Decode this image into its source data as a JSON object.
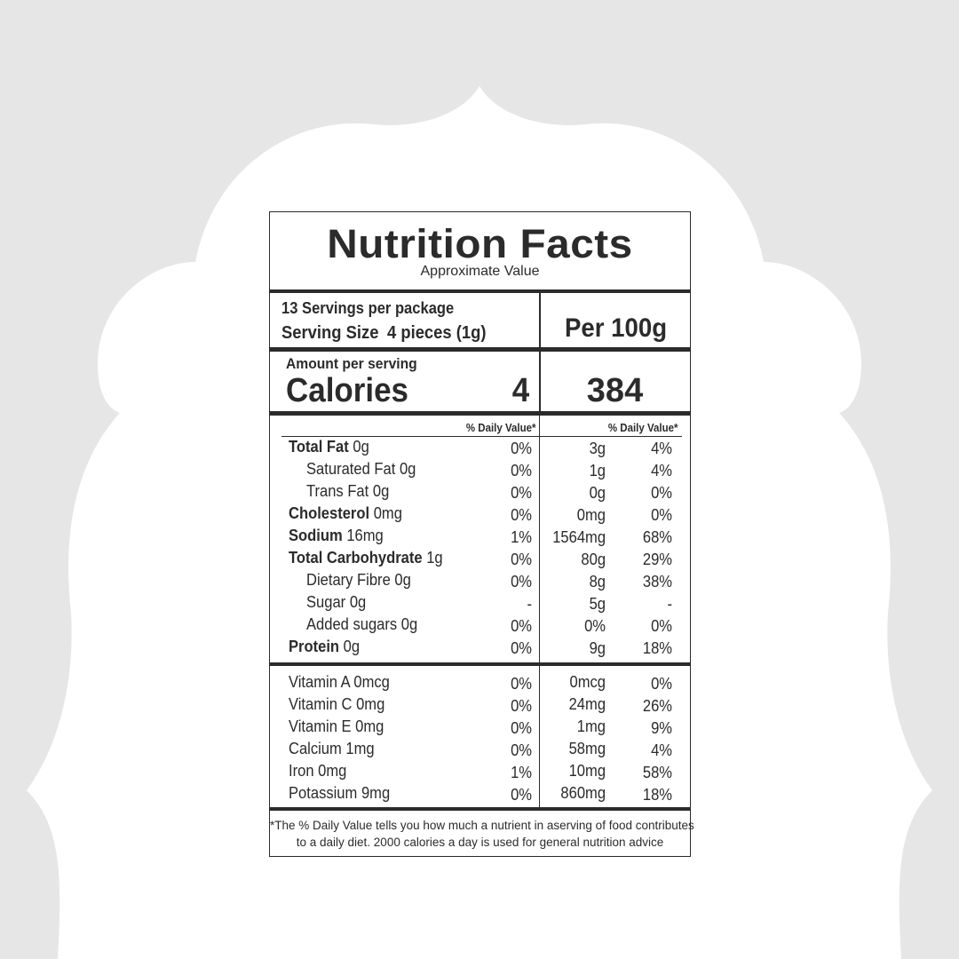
{
  "header": {
    "title": "Nutrition Facts",
    "subtitle": "Approximate Value"
  },
  "serving": {
    "servings_per_package": "13 Servings per package",
    "serving_size_label": "Serving Size",
    "serving_size_value": "4 pieces (1g)",
    "per_label": "Per 100g"
  },
  "calories": {
    "amount_label": "Amount per serving",
    "label": "Calories",
    "per_serving": "4",
    "per_100g": "384"
  },
  "dv_header": {
    "left": "% Daily Value*",
    "right": "% Daily Value*"
  },
  "nutrients": [
    {
      "name": "Total Fat",
      "amount": "0g",
      "bold": true,
      "indent": false,
      "dv": "0%",
      "per100": "3g",
      "dv100": "4%"
    },
    {
      "name": "Saturated Fat",
      "amount": "0g",
      "bold": false,
      "indent": true,
      "dv": "0%",
      "per100": "1g",
      "dv100": "4%"
    },
    {
      "name": "Trans Fat",
      "amount": "0g",
      "bold": false,
      "indent": true,
      "dv": "0%",
      "per100": "0g",
      "dv100": "0%"
    },
    {
      "name": "Cholesterol",
      "amount": "0mg",
      "bold": true,
      "indent": false,
      "dv": "0%",
      "per100": "0mg",
      "dv100": "0%"
    },
    {
      "name": "Sodium",
      "amount": "16mg",
      "bold": true,
      "indent": false,
      "dv": "1%",
      "per100": "1564mg",
      "dv100": "68%"
    },
    {
      "name": "Total Carbohydrate",
      "amount": "1g",
      "bold": true,
      "indent": false,
      "dv": "0%",
      "per100": "80g",
      "dv100": "29%"
    },
    {
      "name": "Dietary Fibre",
      "amount": "0g",
      "bold": false,
      "indent": true,
      "dv": "0%",
      "per100": "8g",
      "dv100": "38%"
    },
    {
      "name": "Sugar",
      "amount": "0g",
      "bold": false,
      "indent": true,
      "dv": "-",
      "per100": "5g",
      "dv100": "-"
    },
    {
      "name": "Added sugars",
      "amount": "0g",
      "bold": false,
      "indent": true,
      "dv": "0%",
      "per100": "0%",
      "dv100": "0%"
    },
    {
      "name": "Protein",
      "amount": "0g",
      "bold": true,
      "indent": false,
      "dv": "0%",
      "per100": "9g",
      "dv100": "18%"
    }
  ],
  "vitamins": [
    {
      "name": "Vitamin A",
      "amount": "0mcg",
      "dv": "0%",
      "per100": "0mcg",
      "dv100": "0%"
    },
    {
      "name": "Vitamin C",
      "amount": "0mg",
      "dv": "0%",
      "per100": "24mg",
      "dv100": "26%"
    },
    {
      "name": "Vitamin E",
      "amount": "0mg",
      "dv": "0%",
      "per100": "1mg",
      "dv100": "9%"
    },
    {
      "name": "Calcium",
      "amount": "1mg",
      "dv": "0%",
      "per100": "58mg",
      "dv100": "4%"
    },
    {
      "name": "Iron",
      "amount": "0mg",
      "dv": "1%",
      "per100": "10mg",
      "dv100": "58%"
    },
    {
      "name": "Potassium",
      "amount": "9mg",
      "dv": "0%",
      "per100": "860mg",
      "dv100": "18%"
    }
  ],
  "footnote": {
    "line1": "*The % Daily Value tells you how much a nutrient in aserving of food contributes",
    "line2": "to a daily diet. 2000 calories a day is used for general nutrition advice"
  }
}
